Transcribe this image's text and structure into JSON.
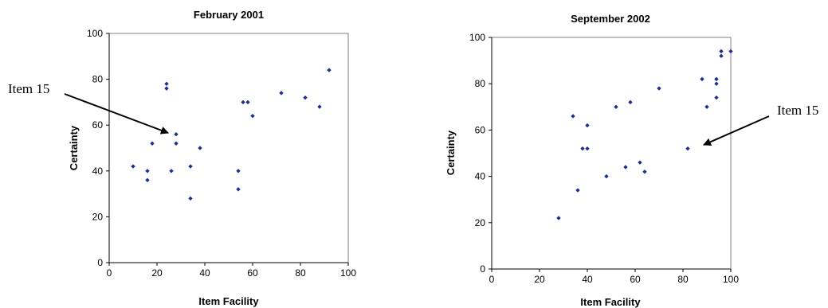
{
  "colors": {
    "marker": "#1f2f8f",
    "axis": "#000000",
    "frame": "#808080",
    "annotation_arrow": "#000000"
  },
  "chart_data": [
    {
      "type": "scatter",
      "title": "February 2001",
      "xlabel": "Item Facility",
      "ylabel": "Certainty",
      "xlim": [
        0,
        100
      ],
      "ylim": [
        0,
        100
      ],
      "x_ticks": [
        "0",
        "20",
        "40",
        "60",
        "80",
        "100"
      ],
      "y_ticks": [
        "0",
        "20",
        "40",
        "60",
        "80",
        "100"
      ],
      "grid": false,
      "legend": false,
      "points": [
        {
          "x": 10,
          "y": 42
        },
        {
          "x": 16,
          "y": 40
        },
        {
          "x": 16,
          "y": 36
        },
        {
          "x": 18,
          "y": 52
        },
        {
          "x": 24,
          "y": 78
        },
        {
          "x": 24,
          "y": 76
        },
        {
          "x": 26,
          "y": 40
        },
        {
          "x": 28,
          "y": 56
        },
        {
          "x": 28,
          "y": 52
        },
        {
          "x": 34,
          "y": 42
        },
        {
          "x": 34,
          "y": 28
        },
        {
          "x": 38,
          "y": 50
        },
        {
          "x": 54,
          "y": 40
        },
        {
          "x": 54,
          "y": 32
        },
        {
          "x": 56,
          "y": 70
        },
        {
          "x": 58,
          "y": 70
        },
        {
          "x": 60,
          "y": 64
        },
        {
          "x": 72,
          "y": 74
        },
        {
          "x": 82,
          "y": 72
        },
        {
          "x": 88,
          "y": 68
        },
        {
          "x": 92,
          "y": 84
        }
      ],
      "annotation": {
        "text": "Item 15",
        "target": {
          "x": 26,
          "y": 56
        }
      }
    },
    {
      "type": "scatter",
      "title": "September 2002",
      "xlabel": "Item Facility",
      "ylabel": "Certainty",
      "xlim": [
        0,
        100
      ],
      "ylim": [
        0,
        100
      ],
      "x_ticks": [
        "0",
        "20",
        "40",
        "60",
        "80",
        "100"
      ],
      "y_ticks": [
        "0",
        "20",
        "40",
        "60",
        "80",
        "100"
      ],
      "grid": false,
      "legend": false,
      "points": [
        {
          "x": 28,
          "y": 22
        },
        {
          "x": 34,
          "y": 66
        },
        {
          "x": 36,
          "y": 34
        },
        {
          "x": 38,
          "y": 52
        },
        {
          "x": 40,
          "y": 52
        },
        {
          "x": 40,
          "y": 62
        },
        {
          "x": 48,
          "y": 40
        },
        {
          "x": 52,
          "y": 70
        },
        {
          "x": 56,
          "y": 44
        },
        {
          "x": 58,
          "y": 72
        },
        {
          "x": 62,
          "y": 46
        },
        {
          "x": 64,
          "y": 42
        },
        {
          "x": 70,
          "y": 78
        },
        {
          "x": 82,
          "y": 52
        },
        {
          "x": 88,
          "y": 82
        },
        {
          "x": 90,
          "y": 70
        },
        {
          "x": 94,
          "y": 82
        },
        {
          "x": 94,
          "y": 80
        },
        {
          "x": 94,
          "y": 74
        },
        {
          "x": 96,
          "y": 94
        },
        {
          "x": 96,
          "y": 92
        },
        {
          "x": 100,
          "y": 94
        }
      ],
      "annotation": {
        "text": "Item 15",
        "target": {
          "x": 88,
          "y": 56
        }
      }
    }
  ]
}
